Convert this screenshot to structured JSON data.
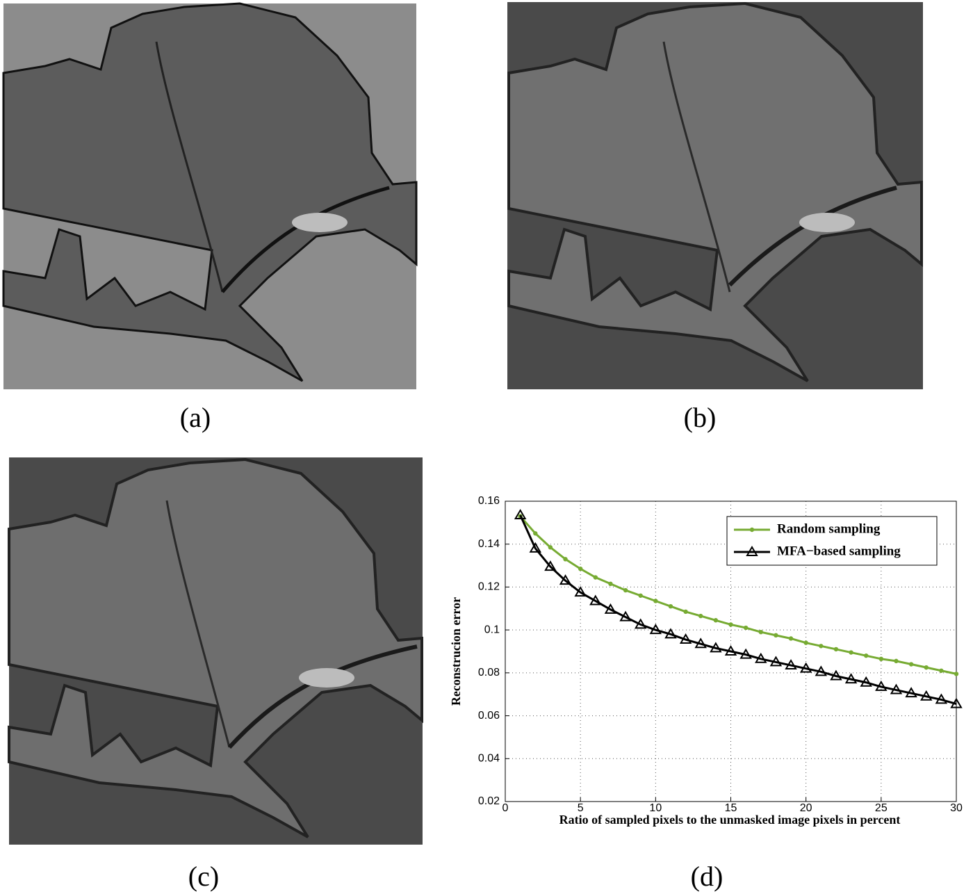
{
  "captions": [
    "(a)",
    "(b)",
    "(c)",
    "(d)"
  ],
  "chart_data": {
    "type": "line",
    "xlabel": "Ratio of sampled pixels to the unmasked image pixels in percent",
    "ylabel": "Reconstrucion error",
    "x": [
      1,
      2,
      3,
      4,
      5,
      6,
      7,
      8,
      9,
      10,
      11,
      12,
      13,
      14,
      15,
      16,
      17,
      18,
      19,
      20,
      21,
      22,
      23,
      24,
      25,
      26,
      27,
      28,
      29,
      30
    ],
    "series": [
      {
        "name": "Random sampling",
        "color": "#77ab33",
        "marker": "dot",
        "values": [
          0.153,
          0.145,
          0.1385,
          0.133,
          0.1285,
          0.1245,
          0.1215,
          0.1185,
          0.116,
          0.1135,
          0.111,
          0.1085,
          0.1065,
          0.1045,
          0.1025,
          0.101,
          0.099,
          0.0975,
          0.096,
          0.094,
          0.0925,
          0.091,
          0.0895,
          0.088,
          0.0865,
          0.0855,
          0.084,
          0.0825,
          0.081,
          0.0795
        ]
      },
      {
        "name": "MFA−based sampling",
        "color": "#000000",
        "marker": "triangle",
        "values": [
          0.1535,
          0.138,
          0.1295,
          0.123,
          0.1175,
          0.1135,
          0.1095,
          0.106,
          0.1025,
          0.1,
          0.098,
          0.0955,
          0.0935,
          0.0915,
          0.09,
          0.0885,
          0.0865,
          0.085,
          0.0835,
          0.082,
          0.0805,
          0.0785,
          0.077,
          0.0755,
          0.0735,
          0.072,
          0.0705,
          0.069,
          0.0675,
          0.0655
        ]
      }
    ],
    "xlim": [
      0,
      30
    ],
    "xticks": [
      0,
      5,
      10,
      15,
      20,
      25,
      30
    ],
    "ylim": [
      0.02,
      0.16
    ],
    "yticks": [
      0.02,
      0.04,
      0.06,
      0.08,
      0.1,
      0.12,
      0.14,
      0.16
    ],
    "grid": true,
    "legend": "upper right"
  }
}
